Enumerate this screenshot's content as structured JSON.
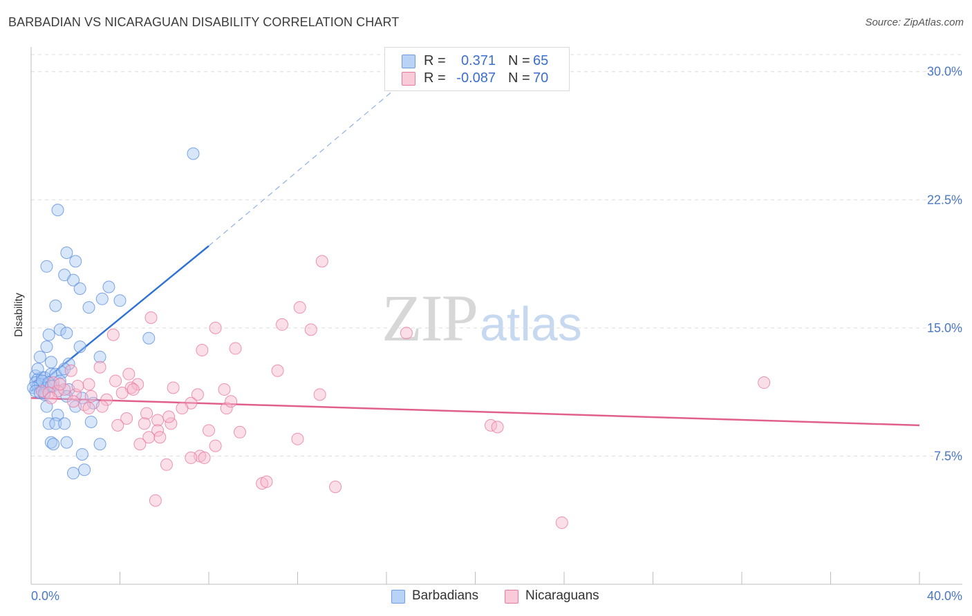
{
  "header": {
    "title": "BARBADIAN VS NICARAGUAN DISABILITY CORRELATION CHART",
    "source": "Source: ZipAtlas.com"
  },
  "legend": {
    "rows": [
      {
        "r_label": "R =",
        "r_value": "0.371",
        "n_label": "N =",
        "n_value": "65",
        "color": "#a9c8f5"
      },
      {
        "r_label": "R =",
        "r_value": "-0.087",
        "n_label": "N =",
        "n_value": "70",
        "color": "#f6b8cb"
      }
    ]
  },
  "bottom_legend": {
    "items": [
      {
        "label": "Barbadians",
        "color": "#a9c8f5"
      },
      {
        "label": "Nicaraguans",
        "color": "#f6b8cb"
      }
    ]
  },
  "watermark": {
    "zip": "ZIP",
    "atlas": "atlas"
  },
  "chart_data": {
    "type": "scatter",
    "title": "BARBADIAN VS NICARAGUAN DISABILITY CORRELATION CHART",
    "xlabel": "",
    "ylabel": "Disability",
    "xlim": [
      0,
      40
    ],
    "ylim": [
      0,
      31
    ],
    "x_tick_labels": [
      "0.0%",
      "40.0%"
    ],
    "y_ticks": [
      7.5,
      15.0,
      22.5,
      30.0
    ],
    "y_tick_labels": [
      "7.5%",
      "15.0%",
      "22.5%",
      "30.0%"
    ],
    "grid": true,
    "series": [
      {
        "name": "Barbadians",
        "color": "#5b8fe0",
        "fill": "#a9c8f5",
        "trend": {
          "x": [
            0.0,
            8.0
          ],
          "y": [
            11.3,
            19.8
          ],
          "dashed_to": [
            17.5,
            30.2
          ]
        },
        "points": [
          [
            7.3,
            25.2
          ],
          [
            1.2,
            21.9
          ],
          [
            1.6,
            19.4
          ],
          [
            2.0,
            18.9
          ],
          [
            0.7,
            18.6
          ],
          [
            1.5,
            18.1
          ],
          [
            1.9,
            17.8
          ],
          [
            2.2,
            17.3
          ],
          [
            3.5,
            17.4
          ],
          [
            3.2,
            16.7
          ],
          [
            4.0,
            16.6
          ],
          [
            1.1,
            16.3
          ],
          [
            2.6,
            16.2
          ],
          [
            0.8,
            14.6
          ],
          [
            1.3,
            14.9
          ],
          [
            1.6,
            14.7
          ],
          [
            5.3,
            14.4
          ],
          [
            0.7,
            13.9
          ],
          [
            2.2,
            13.9
          ],
          [
            0.4,
            13.3
          ],
          [
            3.1,
            13.3
          ],
          [
            0.9,
            13.0
          ],
          [
            1.7,
            12.9
          ],
          [
            0.2,
            12.2
          ],
          [
            0.3,
            12.0
          ],
          [
            0.5,
            12.1
          ],
          [
            0.6,
            12.1
          ],
          [
            0.9,
            12.3
          ],
          [
            1.1,
            12.3
          ],
          [
            1.4,
            12.4
          ],
          [
            0.2,
            11.8
          ],
          [
            0.3,
            11.6
          ],
          [
            0.4,
            11.7
          ],
          [
            0.5,
            11.9
          ],
          [
            0.7,
            11.5
          ],
          [
            0.8,
            11.8
          ],
          [
            1.0,
            11.6
          ],
          [
            1.3,
            11.9
          ],
          [
            1.7,
            11.4
          ],
          [
            0.1,
            11.5
          ],
          [
            0.2,
            11.3
          ],
          [
            0.4,
            11.2
          ],
          [
            0.6,
            11.1
          ],
          [
            1.2,
            11.3
          ],
          [
            2.3,
            10.9
          ],
          [
            1.6,
            11.0
          ],
          [
            0.7,
            10.4
          ],
          [
            2.0,
            10.4
          ],
          [
            2.8,
            10.6
          ],
          [
            1.2,
            9.9
          ],
          [
            0.8,
            9.4
          ],
          [
            1.1,
            9.4
          ],
          [
            1.5,
            9.4
          ],
          [
            2.7,
            9.5
          ],
          [
            1.6,
            8.3
          ],
          [
            0.9,
            8.3
          ],
          [
            1.0,
            8.2
          ],
          [
            3.1,
            8.2
          ],
          [
            2.3,
            7.6
          ],
          [
            2.4,
            6.7
          ],
          [
            1.9,
            6.5
          ],
          [
            0.3,
            12.6
          ],
          [
            1.5,
            12.6
          ],
          [
            0.6,
            11.2
          ],
          [
            0.9,
            11.6
          ]
        ]
      },
      {
        "name": "Nicaraguans",
        "color": "#e8799d",
        "fill": "#f6b8cb",
        "trend": {
          "x": [
            0.0,
            40.0
          ],
          "y": [
            10.9,
            9.3
          ]
        },
        "points": [
          [
            13.1,
            18.9
          ],
          [
            12.1,
            16.2
          ],
          [
            5.4,
            15.6
          ],
          [
            11.3,
            15.2
          ],
          [
            8.3,
            15.0
          ],
          [
            12.6,
            14.9
          ],
          [
            3.7,
            14.6
          ],
          [
            16.9,
            14.7
          ],
          [
            9.2,
            13.8
          ],
          [
            7.7,
            13.7
          ],
          [
            3.1,
            12.7
          ],
          [
            11.1,
            12.5
          ],
          [
            1.8,
            12.5
          ],
          [
            4.4,
            12.3
          ],
          [
            1.0,
            11.8
          ],
          [
            2.6,
            11.7
          ],
          [
            4.8,
            11.7
          ],
          [
            4.5,
            11.5
          ],
          [
            6.4,
            11.5
          ],
          [
            8.7,
            11.4
          ],
          [
            0.5,
            11.3
          ],
          [
            1.2,
            11.3
          ],
          [
            2.0,
            11.1
          ],
          [
            2.7,
            11.0
          ],
          [
            4.1,
            11.2
          ],
          [
            7.5,
            11.1
          ],
          [
            13.0,
            11.1
          ],
          [
            33.0,
            11.8
          ],
          [
            0.8,
            11.2
          ],
          [
            1.5,
            11.4
          ],
          [
            3.4,
            10.8
          ],
          [
            1.9,
            10.7
          ],
          [
            2.4,
            10.5
          ],
          [
            3.2,
            10.4
          ],
          [
            7.2,
            10.6
          ],
          [
            8.8,
            10.3
          ],
          [
            9.0,
            10.7
          ],
          [
            2.6,
            10.3
          ],
          [
            6.8,
            10.3
          ],
          [
            5.2,
            10.0
          ],
          [
            4.3,
            9.7
          ],
          [
            5.7,
            9.6
          ],
          [
            6.3,
            9.4
          ],
          [
            5.1,
            9.4
          ],
          [
            3.9,
            9.3
          ],
          [
            20.7,
            9.3
          ],
          [
            21.0,
            9.2
          ],
          [
            5.7,
            9.0
          ],
          [
            8.0,
            9.0
          ],
          [
            9.4,
            8.9
          ],
          [
            5.8,
            8.6
          ],
          [
            5.3,
            8.6
          ],
          [
            12.0,
            8.5
          ],
          [
            4.9,
            8.2
          ],
          [
            8.3,
            8.1
          ],
          [
            7.6,
            7.5
          ],
          [
            7.2,
            7.4
          ],
          [
            7.8,
            7.4
          ],
          [
            6.1,
            7.0
          ],
          [
            10.4,
            5.9
          ],
          [
            10.6,
            6.0
          ],
          [
            13.7,
            5.7
          ],
          [
            5.6,
            4.9
          ],
          [
            23.9,
            3.6
          ],
          [
            0.9,
            10.9
          ],
          [
            1.3,
            11.7
          ],
          [
            2.1,
            11.6
          ],
          [
            3.8,
            11.9
          ],
          [
            6.2,
            9.8
          ],
          [
            4.6,
            11.4
          ]
        ]
      }
    ]
  }
}
